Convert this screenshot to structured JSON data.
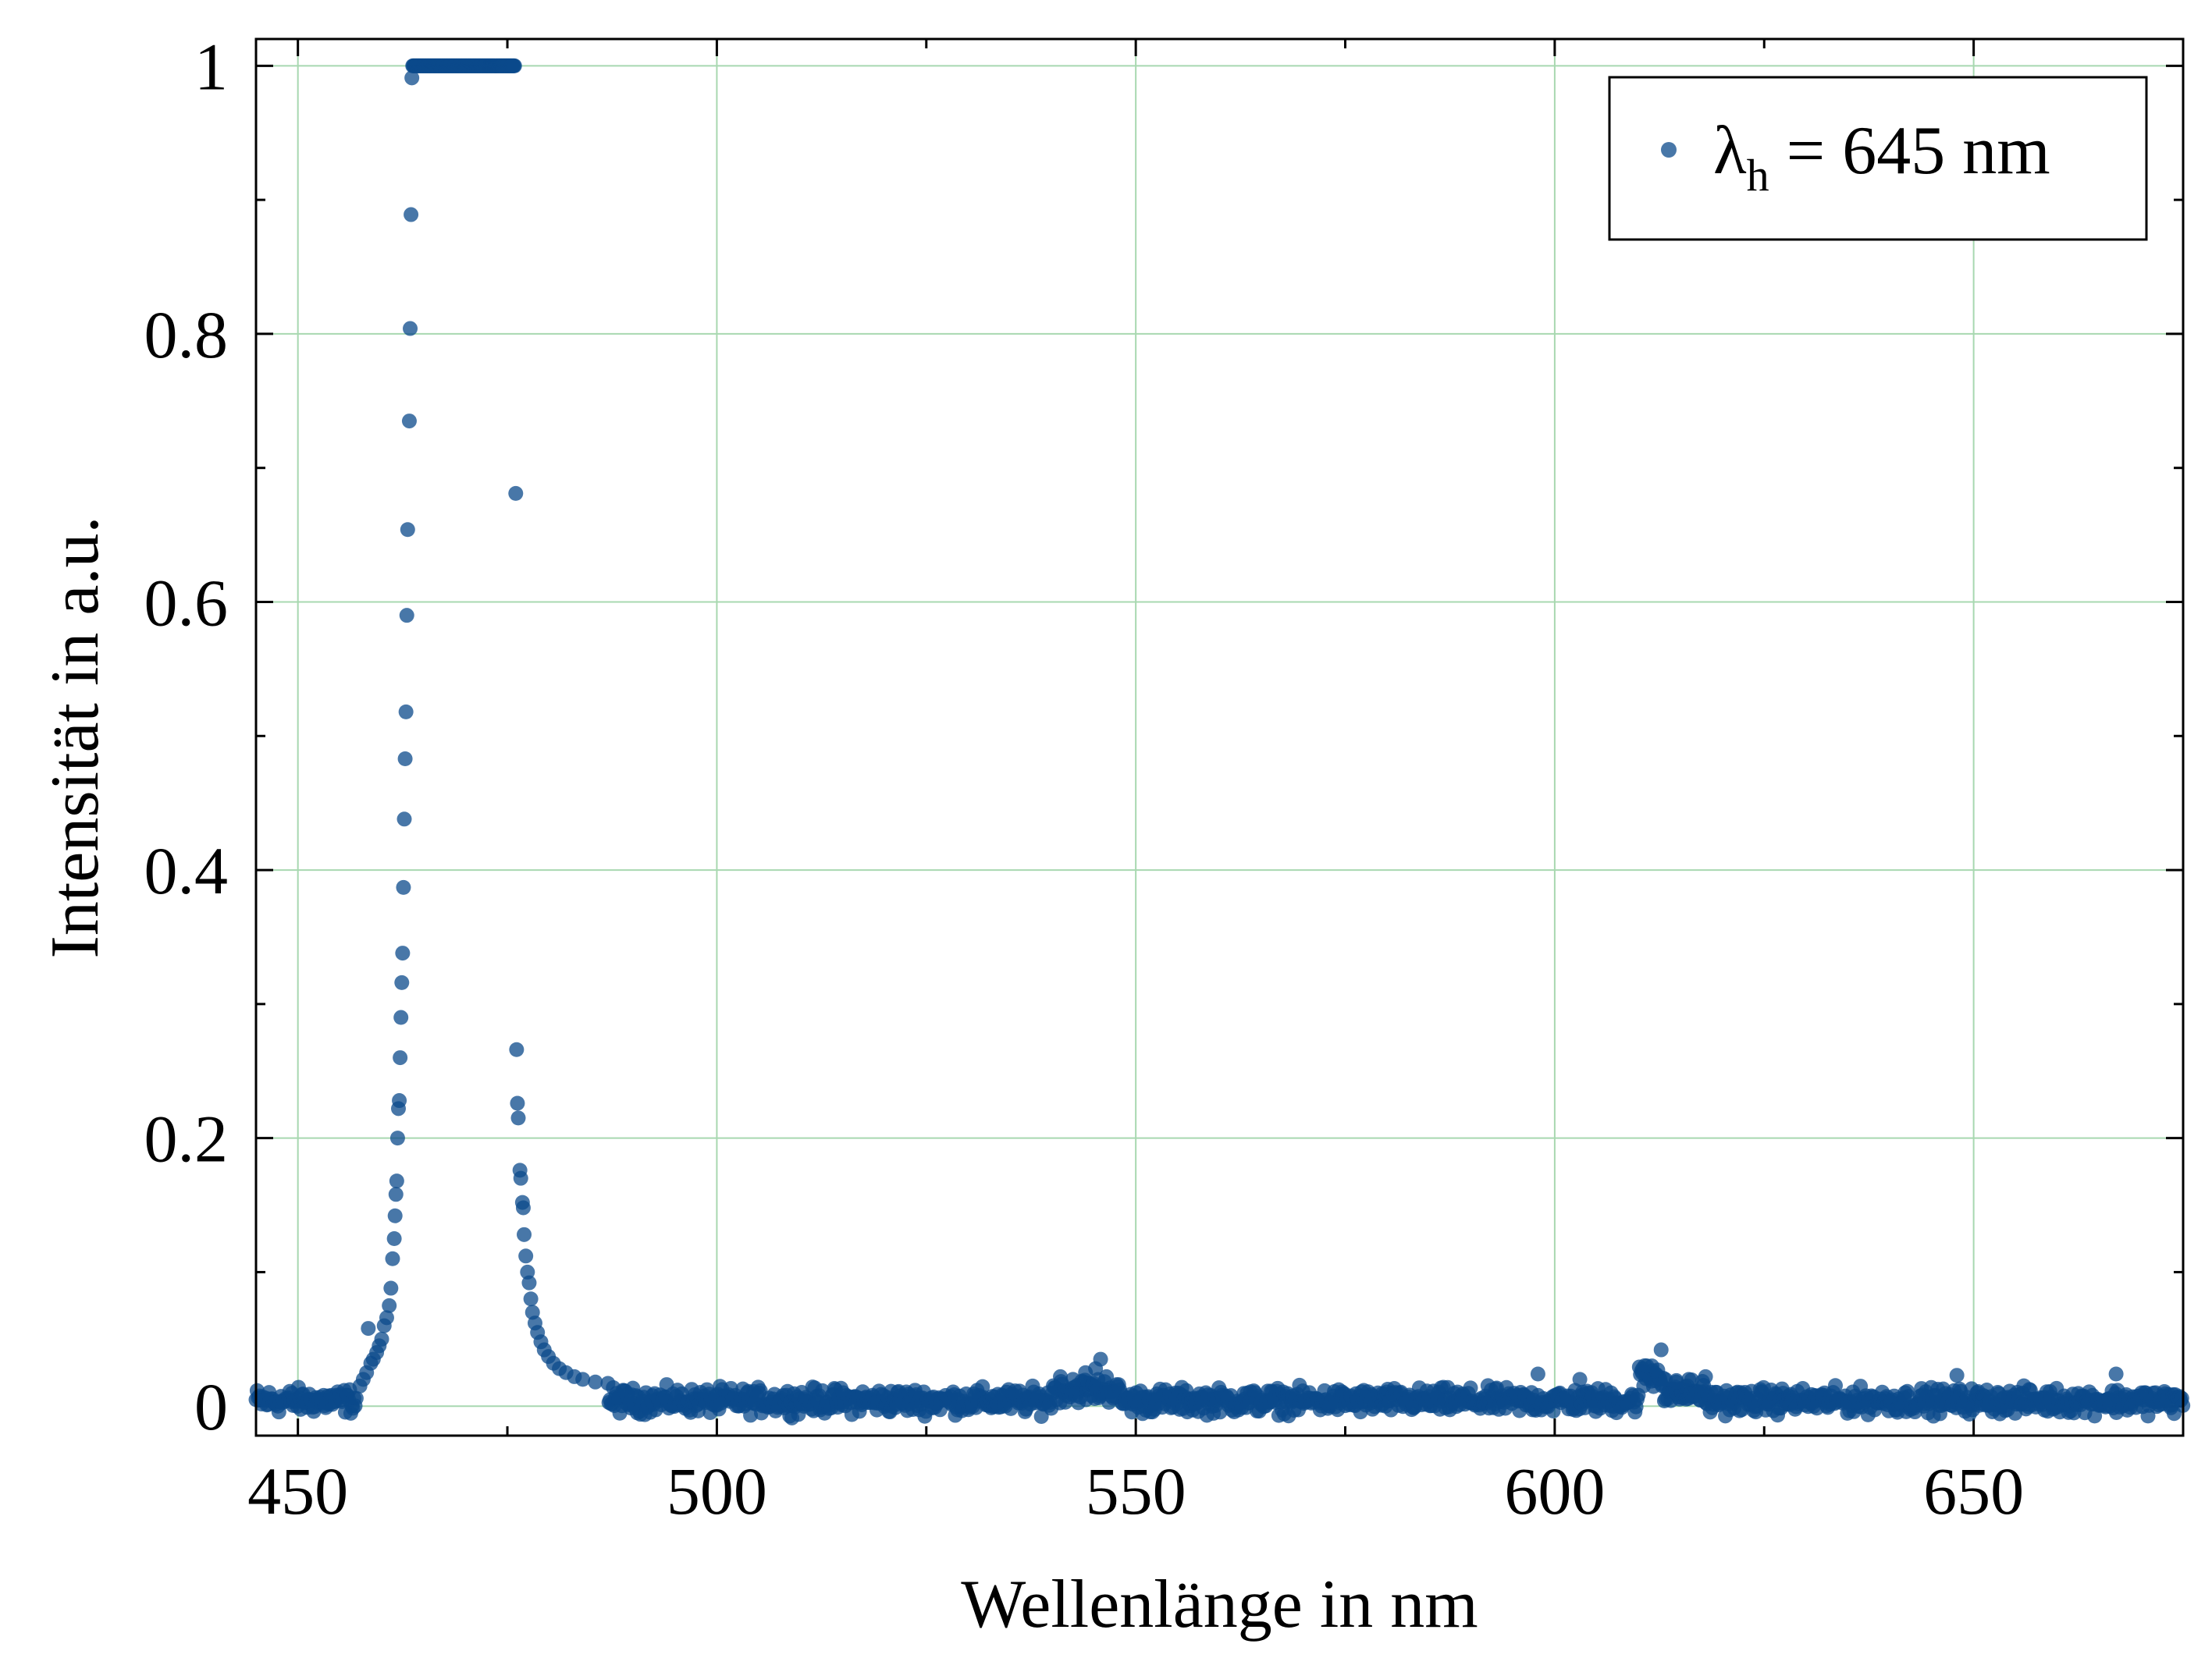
{
  "chart_data": {
    "type": "scatter",
    "xlabel": "Wellenlänge in nm",
    "ylabel": "Intensität in a.u.",
    "xlim": [
      445,
      675
    ],
    "ylim": [
      -0.022,
      1.02
    ],
    "xticks": [
      450,
      500,
      550,
      600,
      650
    ],
    "xtick_labels": [
      "450",
      "500",
      "550",
      "600",
      "650"
    ],
    "yticks": [
      0,
      0.2,
      0.4,
      0.6,
      0.8,
      1
    ],
    "ytick_labels": [
      "0",
      "0.2",
      "0.4",
      "0.6",
      "0.8",
      "1"
    ],
    "grid": true,
    "legend": {
      "position": "top-right",
      "symbol": "λ",
      "subscript": "h",
      "text": " = 645 nm"
    },
    "marker_color": "#0b4a8b",
    "grid_color": "#a8d8b0",
    "series": [
      {
        "name": "λh = 645 nm",
        "points": [
          [
            457.4,
            0.015
          ],
          [
            457.8,
            0.02
          ],
          [
            458.2,
            0.025
          ],
          [
            458.4,
            0.058
          ],
          [
            458.7,
            0.032
          ],
          [
            459.0,
            0.035
          ],
          [
            459.4,
            0.04
          ],
          [
            459.7,
            0.045
          ],
          [
            460.0,
            0.05
          ],
          [
            460.3,
            0.06
          ],
          [
            460.6,
            0.066
          ],
          [
            460.9,
            0.075
          ],
          [
            461.1,
            0.088
          ],
          [
            461.3,
            0.11
          ],
          [
            461.5,
            0.125
          ],
          [
            461.6,
            0.142
          ],
          [
            461.7,
            0.158
          ],
          [
            461.8,
            0.168
          ],
          [
            461.9,
            0.2
          ],
          [
            462.0,
            0.222
          ],
          [
            462.1,
            0.228
          ],
          [
            462.2,
            0.26
          ],
          [
            462.3,
            0.29
          ],
          [
            462.4,
            0.316
          ],
          [
            462.5,
            0.338
          ],
          [
            462.6,
            0.387
          ],
          [
            462.7,
            0.438
          ],
          [
            462.8,
            0.483
          ],
          [
            462.9,
            0.518
          ],
          [
            463.0,
            0.59
          ],
          [
            463.1,
            0.654
          ],
          [
            463.3,
            0.735
          ],
          [
            463.4,
            0.804
          ],
          [
            463.5,
            0.889
          ],
          [
            463.6,
            0.991
          ],
          [
            476.0,
            0.681
          ],
          [
            476.1,
            0.266
          ],
          [
            476.2,
            0.226
          ],
          [
            476.3,
            0.215
          ],
          [
            476.5,
            0.176
          ],
          [
            476.6,
            0.17
          ],
          [
            476.8,
            0.152
          ],
          [
            476.9,
            0.148
          ],
          [
            477.0,
            0.128
          ],
          [
            477.2,
            0.112
          ],
          [
            477.4,
            0.1
          ],
          [
            477.6,
            0.092
          ],
          [
            477.8,
            0.08
          ],
          [
            478.0,
            0.07
          ],
          [
            478.3,
            0.062
          ],
          [
            478.6,
            0.055
          ],
          [
            479.0,
            0.048
          ],
          [
            479.4,
            0.042
          ],
          [
            479.9,
            0.037
          ],
          [
            480.5,
            0.032
          ],
          [
            481.2,
            0.028
          ],
          [
            482.0,
            0.025
          ],
          [
            483.0,
            0.022
          ],
          [
            484.0,
            0.02
          ],
          [
            485.5,
            0.018
          ],
          [
            487.0,
            0.017
          ],
          [
            541.0,
            0.022
          ],
          [
            542.5,
            0.02
          ],
          [
            544.0,
            0.025
          ],
          [
            545.2,
            0.028
          ],
          [
            545.8,
            0.035
          ],
          [
            546.5,
            0.022
          ],
          [
            598.0,
            0.024
          ],
          [
            603.0,
            0.02
          ],
          [
            610.5,
            0.028
          ],
          [
            611.0,
            0.03
          ],
          [
            611.6,
            0.03
          ],
          [
            612.3,
            0.027
          ],
          [
            612.7,
            0.042
          ],
          [
            613.2,
            0.02
          ],
          [
            614.5,
            0.018
          ],
          [
            616.0,
            0.02
          ],
          [
            618.0,
            0.022
          ],
          [
            648.0,
            0.023
          ],
          [
            667.0,
            0.024
          ]
        ],
        "plateau": {
          "x_from": 463.7,
          "x_to": 475.9,
          "y": 1.0
        },
        "baseline": {
          "x_from": 445,
          "x_to": 675
        }
      }
    ]
  }
}
